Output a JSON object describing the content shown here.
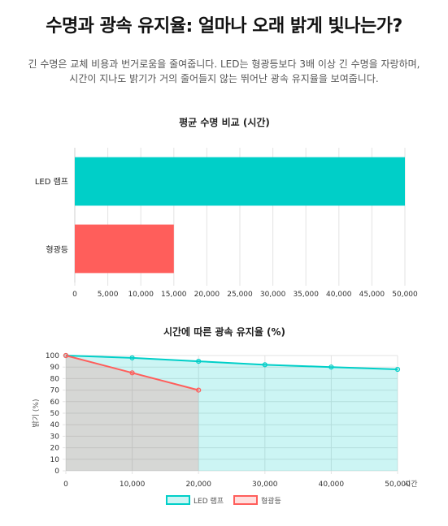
{
  "page": {
    "title": "수명과 광속 유지율: 얼마나 오래 밝게 빛나는가?",
    "description_line1": "긴 수명은 교체 비용과 번거로움을 줄여줍니다. LED는 형광등보다 3배 이상 긴 수명을 자랑하며,",
    "description_line2": "시간이 지나도 밝기가 거의 줄어들지 않는 뛰어난 광속 유지율을 보여줍니다."
  },
  "colors": {
    "led": "#00cfc8",
    "fluorescent": "#ff5e5b",
    "led_area": "rgba(0,207,200,0.2)",
    "fluorescent_area": "rgba(255,94,91,0.2)"
  },
  "chart_data": [
    {
      "type": "bar",
      "orientation": "horizontal",
      "title": "평균 수명 비교 (시간)",
      "categories": [
        "LED 램프",
        "형광등"
      ],
      "values": [
        50000,
        15000
      ],
      "xlim": [
        0,
        50000
      ],
      "x_ticks": [
        "0",
        "5,000",
        "10,000",
        "15,000",
        "20,000",
        "25,000",
        "30,000",
        "35,000",
        "40,000",
        "45,000",
        "50,000"
      ],
      "grid": true
    },
    {
      "type": "area",
      "title": "시간에 따른 광속 유지율 (%)",
      "xlabel": "시간",
      "ylabel": "밝기 (%)",
      "xlim": [
        0,
        50000
      ],
      "ylim": [
        0,
        100
      ],
      "x_ticks": [
        "0",
        "10,000",
        "20,000",
        "30,000",
        "40,000",
        "50,000"
      ],
      "y_ticks": [
        "0",
        "10",
        "20",
        "30",
        "40",
        "50",
        "60",
        "70",
        "80",
        "90",
        "100"
      ],
      "series": [
        {
          "name": "LED 램프",
          "x": [
            0,
            10000,
            20000,
            30000,
            40000,
            50000
          ],
          "values": [
            100,
            98,
            95,
            92,
            90,
            88
          ]
        },
        {
          "name": "형광등",
          "x": [
            0,
            10000,
            20000
          ],
          "values": [
            100,
            85,
            70
          ]
        }
      ],
      "legend": "bottom",
      "grid": true
    }
  ]
}
